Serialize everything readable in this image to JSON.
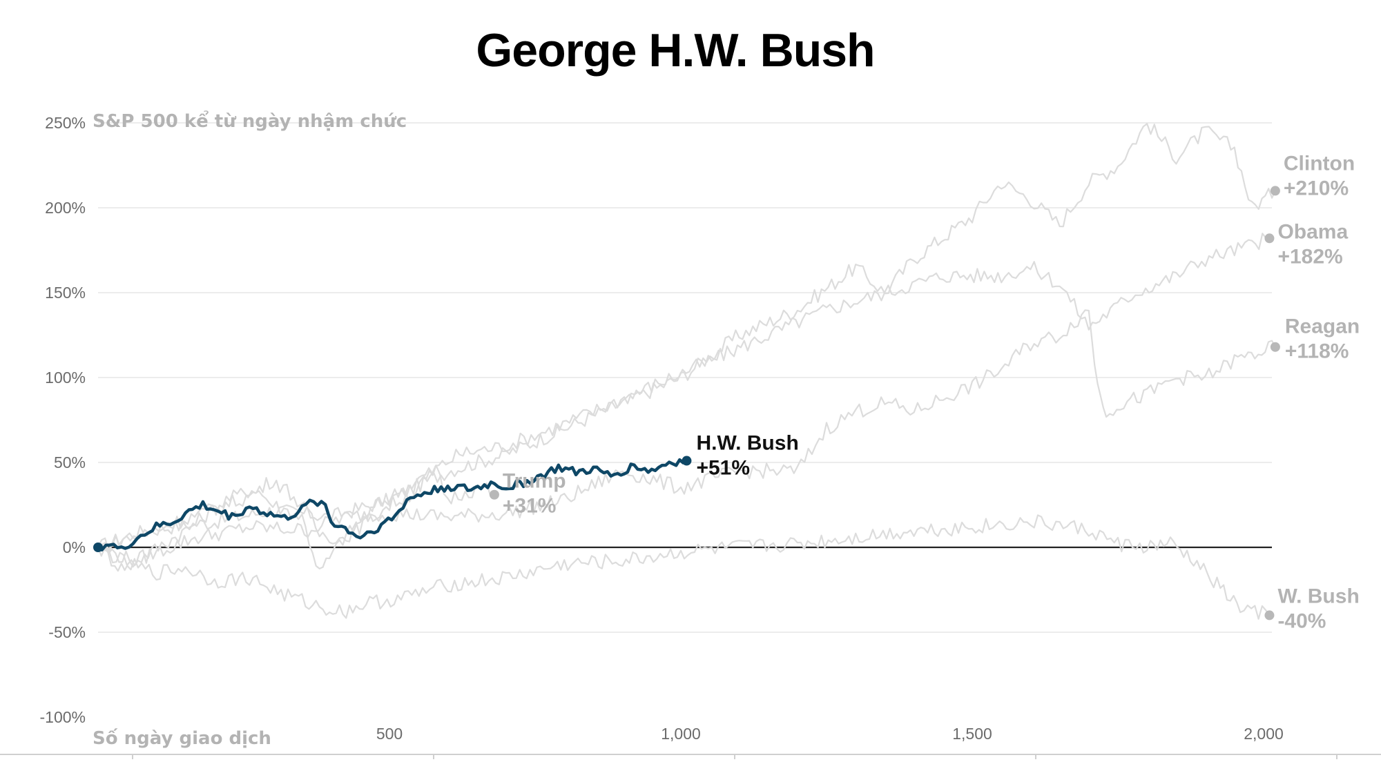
{
  "chart_data": {
    "type": "line",
    "title": "George H.W. Bush",
    "ylabel": "S&P 500 kể từ ngày nhậm chức",
    "xlabel": "Số ngày giao dịch",
    "xlim": [
      0,
      2020
    ],
    "ylim": [
      -100,
      250
    ],
    "y_ticks": [
      250,
      200,
      150,
      100,
      50,
      0,
      -50,
      -100
    ],
    "y_tick_labels": [
      "250%",
      "200%",
      "150%",
      "100%",
      "50%",
      "0%",
      "-50%",
      "-100%"
    ],
    "x_ticks": [
      500,
      1000,
      1500,
      2000
    ],
    "x_tick_labels": [
      "500",
      "1,000",
      "1,500",
      "2,000"
    ],
    "highlight": "H.W. Bush",
    "series": [
      {
        "name": "Clinton",
        "label_value": "+210%",
        "end_day": 2020,
        "end_value": 210,
        "points": [
          [
            0,
            0
          ],
          [
            60,
            8
          ],
          [
            120,
            12
          ],
          [
            200,
            15
          ],
          [
            300,
            22
          ],
          [
            400,
            18
          ],
          [
            500,
            28
          ],
          [
            600,
            45
          ],
          [
            700,
            55
          ],
          [
            800,
            70
          ],
          [
            900,
            85
          ],
          [
            1000,
            100
          ],
          [
            1100,
            125
          ],
          [
            1200,
            140
          ],
          [
            1300,
            165
          ],
          [
            1350,
            150
          ],
          [
            1400,
            170
          ],
          [
            1500,
            195
          ],
          [
            1550,
            215
          ],
          [
            1600,
            205
          ],
          [
            1650,
            190
          ],
          [
            1700,
            215
          ],
          [
            1750,
            225
          ],
          [
            1800,
            250
          ],
          [
            1850,
            230
          ],
          [
            1900,
            245
          ],
          [
            1950,
            235
          ],
          [
            1980,
            200
          ],
          [
            2020,
            210
          ]
        ]
      },
      {
        "name": "Obama",
        "label_value": "+182%",
        "end_day": 2010,
        "end_value": 182,
        "points": [
          [
            0,
            0
          ],
          [
            40,
            -12
          ],
          [
            80,
            -5
          ],
          [
            150,
            10
          ],
          [
            220,
            28
          ],
          [
            270,
            35
          ],
          [
            300,
            25
          ],
          [
            350,
            18
          ],
          [
            380,
            -15
          ],
          [
            420,
            5
          ],
          [
            480,
            25
          ],
          [
            550,
            40
          ],
          [
            620,
            55
          ],
          [
            700,
            60
          ],
          [
            780,
            70
          ],
          [
            850,
            80
          ],
          [
            950,
            95
          ],
          [
            1050,
            110
          ],
          [
            1150,
            125
          ],
          [
            1250,
            140
          ],
          [
            1350,
            150
          ],
          [
            1450,
            160
          ],
          [
            1550,
            160
          ],
          [
            1600,
            165
          ],
          [
            1650,
            155
          ],
          [
            1700,
            130
          ],
          [
            1780,
            150
          ],
          [
            1850,
            160
          ],
          [
            1900,
            170
          ],
          [
            1950,
            175
          ],
          [
            2010,
            182
          ]
        ]
      },
      {
        "name": "Reagan",
        "label_value": "+118%",
        "end_day": 2020,
        "end_value": 118,
        "points": [
          [
            0,
            0
          ],
          [
            60,
            -8
          ],
          [
            100,
            -3
          ],
          [
            160,
            5
          ],
          [
            260,
            12
          ],
          [
            360,
            10
          ],
          [
            420,
            18
          ],
          [
            500,
            20
          ],
          [
            600,
            18
          ],
          [
            700,
            20
          ],
          [
            800,
            28
          ],
          [
            900,
            45
          ],
          [
            1000,
            35
          ],
          [
            1100,
            45
          ],
          [
            1200,
            45
          ],
          [
            1250,
            70
          ],
          [
            1300,
            80
          ],
          [
            1350,
            85
          ],
          [
            1400,
            80
          ],
          [
            1450,
            88
          ],
          [
            1500,
            95
          ],
          [
            1550,
            105
          ],
          [
            1600,
            120
          ],
          [
            1650,
            125
          ],
          [
            1700,
            140
          ],
          [
            1715,
            95
          ],
          [
            1730,
            80
          ],
          [
            1760,
            85
          ],
          [
            1800,
            90
          ],
          [
            1850,
            100
          ],
          [
            1900,
            100
          ],
          [
            1950,
            110
          ],
          [
            2020,
            118
          ]
        ]
      },
      {
        "name": "Trump",
        "label_value": "+31%",
        "end_day": 680,
        "end_value": 31,
        "points": [
          [
            0,
            0
          ],
          [
            80,
            8
          ],
          [
            160,
            18
          ],
          [
            260,
            30
          ],
          [
            300,
            40
          ],
          [
            330,
            32
          ],
          [
            360,
            20
          ],
          [
            380,
            8
          ],
          [
            420,
            5
          ],
          [
            460,
            15
          ],
          [
            500,
            25
          ],
          [
            540,
            32
          ],
          [
            580,
            45
          ],
          [
            600,
            28
          ],
          [
            630,
            33
          ],
          [
            660,
            35
          ],
          [
            680,
            31
          ]
        ]
      },
      {
        "name": "W. Bush",
        "label_value": "-40%",
        "end_day": 2010,
        "end_value": -40,
        "points": [
          [
            0,
            0
          ],
          [
            50,
            -10
          ],
          [
            100,
            -15
          ],
          [
            150,
            -12
          ],
          [
            200,
            -20
          ],
          [
            260,
            -18
          ],
          [
            320,
            -28
          ],
          [
            380,
            -35
          ],
          [
            420,
            -38
          ],
          [
            460,
            -33
          ],
          [
            520,
            -30
          ],
          [
            600,
            -22
          ],
          [
            700,
            -18
          ],
          [
            800,
            -10
          ],
          [
            900,
            -8
          ],
          [
            1000,
            -3
          ],
          [
            1100,
            0
          ],
          [
            1200,
            2
          ],
          [
            1300,
            6
          ],
          [
            1400,
            10
          ],
          [
            1500,
            12
          ],
          [
            1600,
            15
          ],
          [
            1650,
            13
          ],
          [
            1700,
            10
          ],
          [
            1750,
            2
          ],
          [
            1800,
            0
          ],
          [
            1840,
            2
          ],
          [
            1880,
            -8
          ],
          [
            1920,
            -22
          ],
          [
            1960,
            -36
          ],
          [
            2010,
            -40
          ]
        ]
      },
      {
        "name": "H.W. Bush",
        "label_value": "+51%",
        "end_day": 1010,
        "end_value": 51,
        "points": [
          [
            0,
            0
          ],
          [
            20,
            2
          ],
          [
            40,
            -2
          ],
          [
            60,
            4
          ],
          [
            80,
            8
          ],
          [
            100,
            12
          ],
          [
            130,
            15
          ],
          [
            150,
            20
          ],
          [
            180,
            25
          ],
          [
            200,
            22
          ],
          [
            230,
            18
          ],
          [
            260,
            24
          ],
          [
            290,
            20
          ],
          [
            320,
            17
          ],
          [
            350,
            22
          ],
          [
            370,
            28
          ],
          [
            390,
            25
          ],
          [
            400,
            15
          ],
          [
            430,
            10
          ],
          [
            450,
            6
          ],
          [
            480,
            12
          ],
          [
            510,
            18
          ],
          [
            530,
            28
          ],
          [
            560,
            32
          ],
          [
            600,
            36
          ],
          [
            640,
            34
          ],
          [
            680,
            38
          ],
          [
            700,
            35
          ],
          [
            730,
            38
          ],
          [
            760,
            42
          ],
          [
            790,
            47
          ],
          [
            820,
            44
          ],
          [
            850,
            46
          ],
          [
            880,
            42
          ],
          [
            920,
            48
          ],
          [
            950,
            45
          ],
          [
            980,
            50
          ],
          [
            1010,
            51
          ]
        ]
      }
    ]
  }
}
